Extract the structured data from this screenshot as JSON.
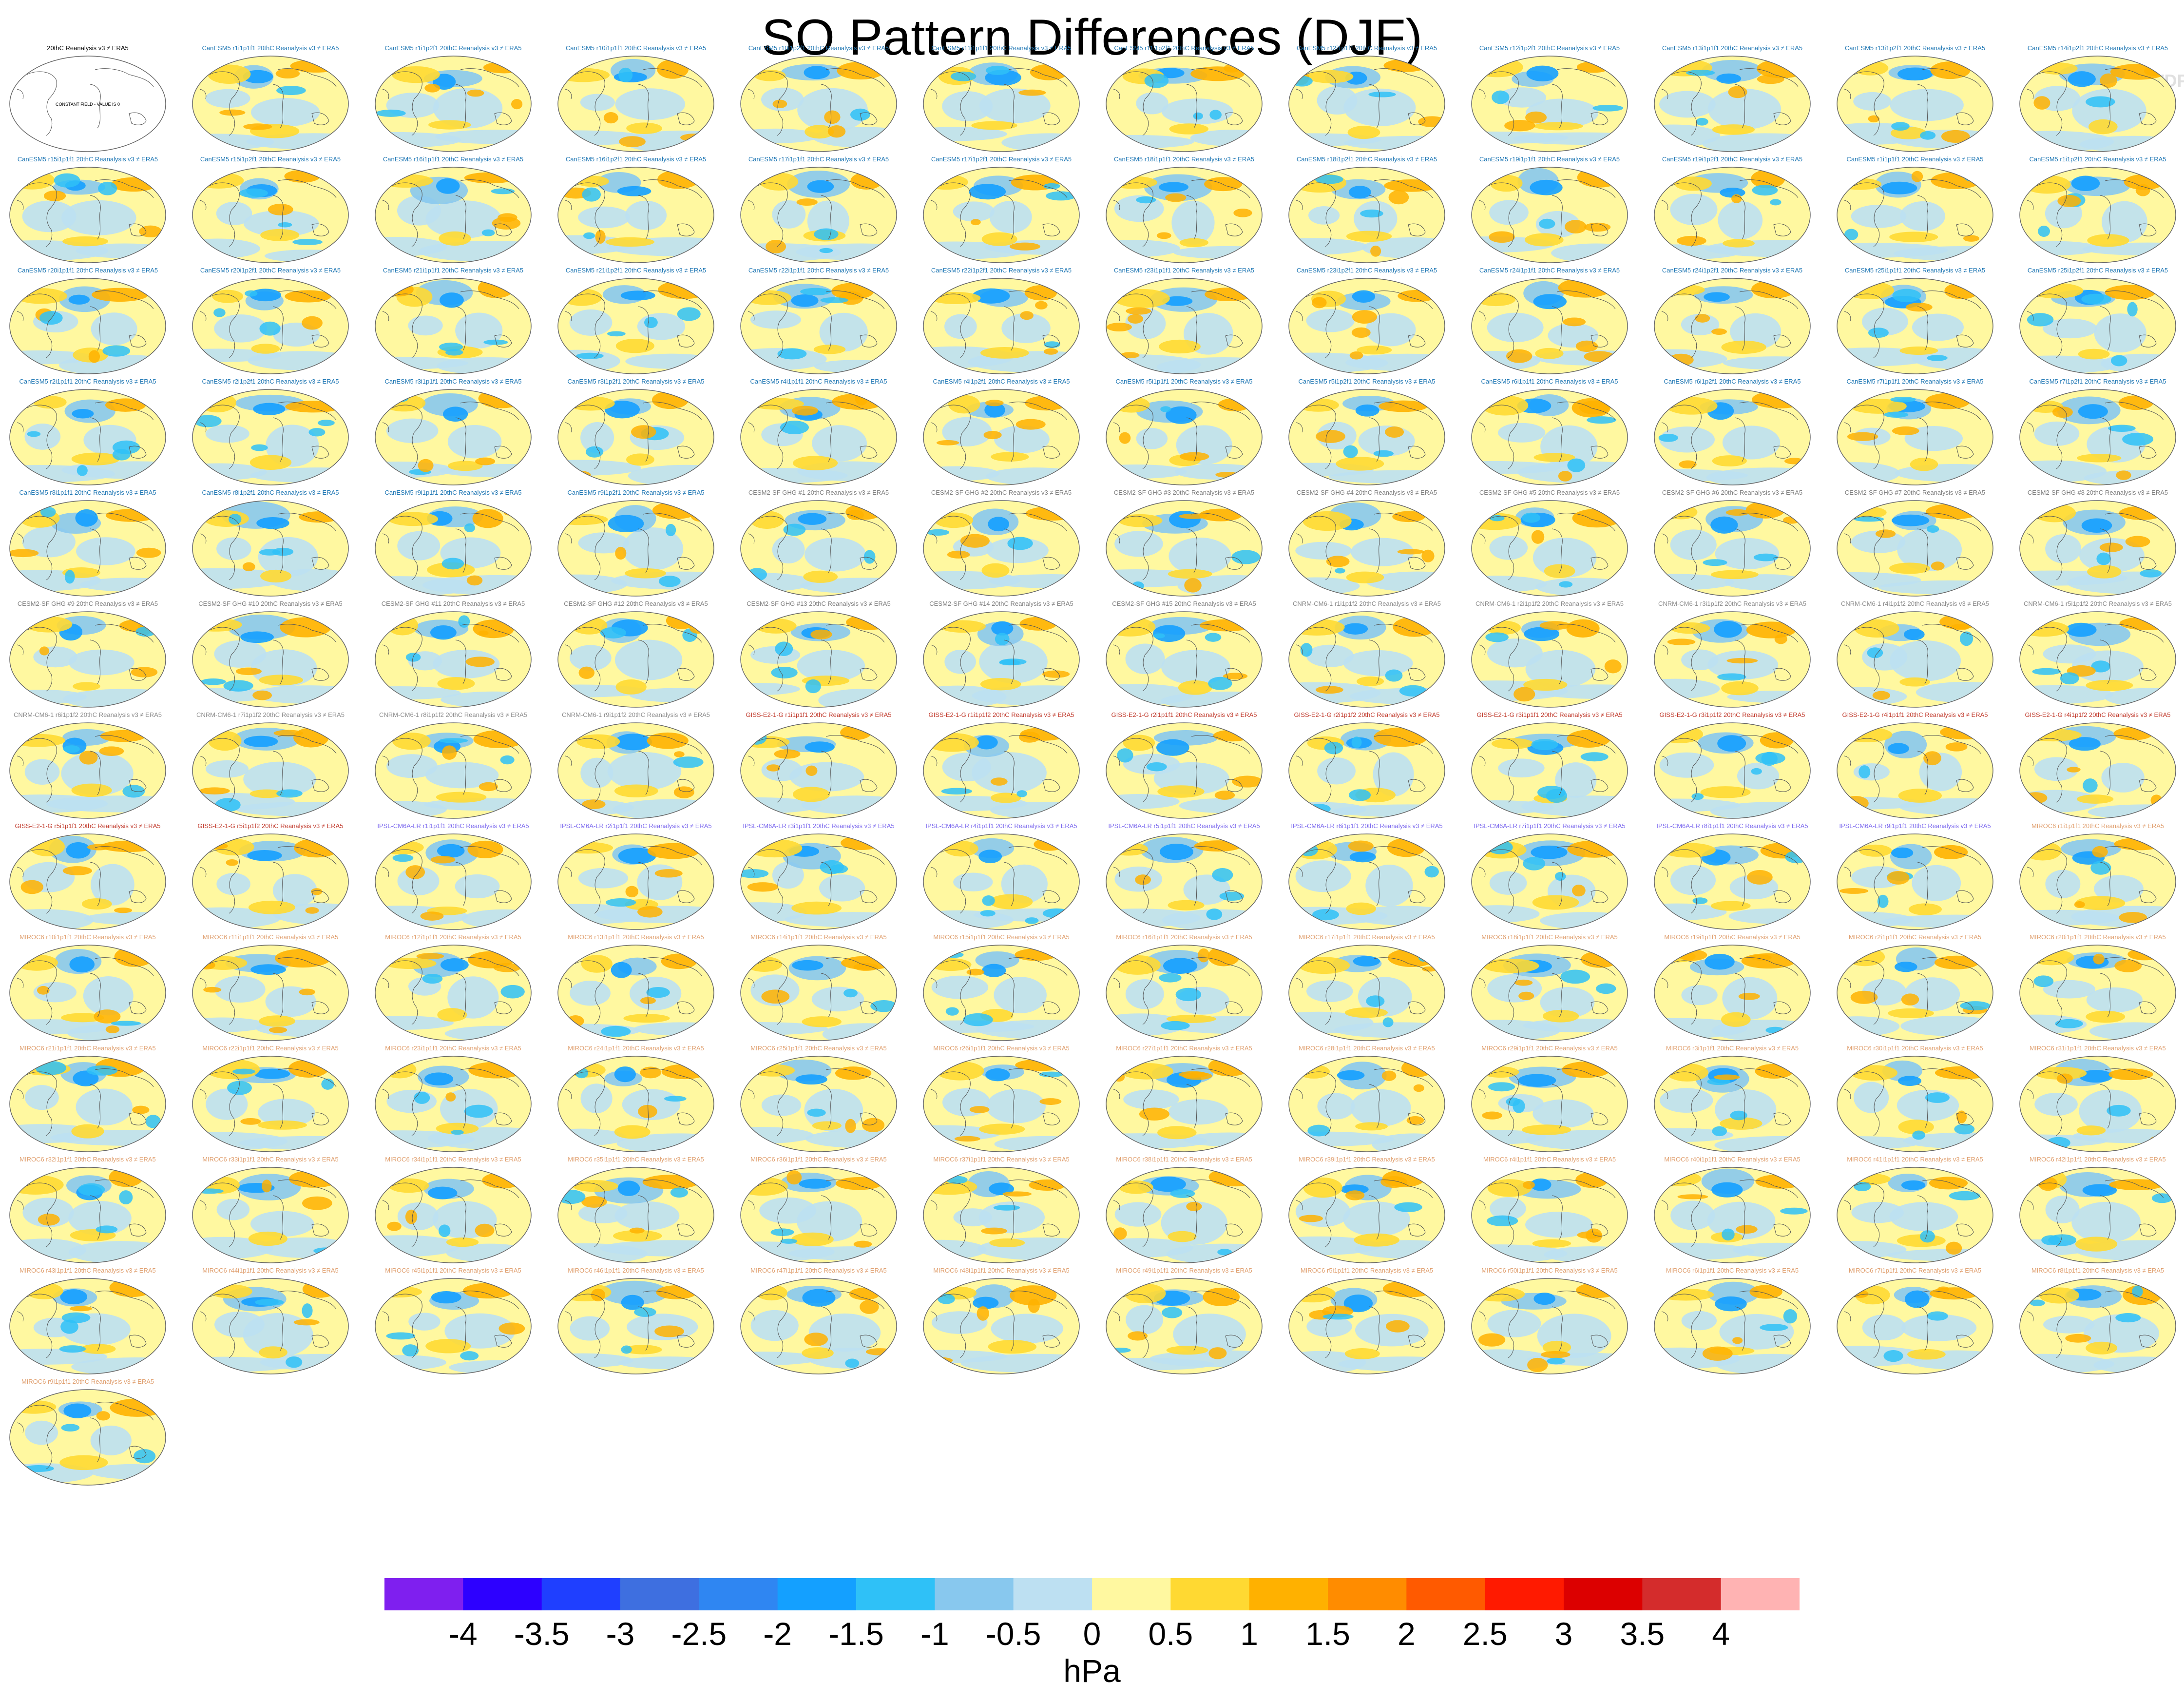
{
  "title": "SO Pattern Differences (DJF)",
  "watermark": "© CVDP-LE",
  "units": "hPa",
  "chart_data": {
    "type": "heatmap",
    "title": "SO Pattern Differences (DJF)",
    "projection": "Robinson global map panels",
    "panel_titles": [
      "20thC Reanalysis v3 ≠ ERA5",
      "CanESM5 r1i1p1f1 20thC Reanalysis v3 ≠ ERA5",
      "CanESM5 r1i1p2f1 20thC Reanalysis v3 ≠ ERA5",
      "CanESM5 r10i1p1f1 20thC Reanalysis v3 ≠ ERA5",
      "CanESM5 r10i1p2f1 20thC Reanalysis v3 ≠ ERA5",
      "CanESM5 r11i1p1f1 20thC Reanalysis v3 ≠ ERA5",
      "CanESM5 r11i1p2f1 20thC Reanalysis v3 ≠ ERA5",
      "CanESM5 r12i1p1f1 20thC Reanalysis v3 ≠ ERA5",
      "CanESM5 r12i1p2f1 20thC Reanalysis v3 ≠ ERA5",
      "CanESM5 r13i1p1f1 20thC Reanalysis v3 ≠ ERA5",
      "CanESM5 r13i1p2f1 20thC Reanalysis v3 ≠ ERA5",
      "CanESM5 r14i1p2f1 20thC Reanalysis v3 ≠ ERA5",
      "CanESM5 r15i1p1f1 20thC Reanalysis v3 ≠ ERA5",
      "CanESM5 r15i1p2f1 20thC Reanalysis v3 ≠ ERA5",
      "CanESM5 r16i1p1f1 20thC Reanalysis v3 ≠ ERA5",
      "CanESM5 r16i1p2f1 20thC Reanalysis v3 ≠ ERA5",
      "CanESM5 r17i1p1f1 20thC Reanalysis v3 ≠ ERA5",
      "CanESM5 r17i1p2f1 20thC Reanalysis v3 ≠ ERA5",
      "CanESM5 r18i1p1f1 20thC Reanalysis v3 ≠ ERA5",
      "CanESM5 r18i1p2f1 20thC Reanalysis v3 ≠ ERA5",
      "CanESM5 r19i1p1f1 20thC Reanalysis v3 ≠ ERA5",
      "CanESM5 r19i1p2f1 20thC Reanalysis v3 ≠ ERA5",
      "CanESM5 r1i1p1f1 20thC Reanalysis v3 ≠ ERA5",
      "CanESM5 r1i1p2f1 20thC Reanalysis v3 ≠ ERA5",
      "CanESM5 r20i1p1f1 20thC Reanalysis v3 ≠ ERA5",
      "CanESM5 r20i1p2f1 20thC Reanalysis v3 ≠ ERA5",
      "CanESM5 r21i1p1f1 20thC Reanalysis v3 ≠ ERA5",
      "CanESM5 r21i1p2f1 20thC Reanalysis v3 ≠ ERA5",
      "CanESM5 r22i1p1f1 20thC Reanalysis v3 ≠ ERA5",
      "CanESM5 r22i1p2f1 20thC Reanalysis v3 ≠ ERA5",
      "CanESM5 r23i1p1f1 20thC Reanalysis v3 ≠ ERA5",
      "CanESM5 r23i1p2f1 20thC Reanalysis v3 ≠ ERA5",
      "CanESM5 r24i1p1f1 20thC Reanalysis v3 ≠ ERA5",
      "CanESM5 r24i1p2f1 20thC Reanalysis v3 ≠ ERA5",
      "CanESM5 r25i1p1f1 20thC Reanalysis v3 ≠ ERA5",
      "CanESM5 r25i1p2f1 20thC Reanalysis v3 ≠ ERA5",
      "CanESM5 r2i1p1f1 20thC Reanalysis v3 ≠ ERA5",
      "CanESM5 r2i1p2f1 20thC Reanalysis v3 ≠ ERA5",
      "CanESM5 r3i1p1f1 20thC Reanalysis v3 ≠ ERA5",
      "CanESM5 r3i1p2f1 20thC Reanalysis v3 ≠ ERA5",
      "CanESM5 r4i1p1f1 20thC Reanalysis v3 ≠ ERA5",
      "CanESM5 r4i1p2f1 20thC Reanalysis v3 ≠ ERA5",
      "CanESM5 r5i1p1f1 20thC Reanalysis v3 ≠ ERA5",
      "CanESM5 r5i1p2f1 20thC Reanalysis v3 ≠ ERA5",
      "CanESM5 r6i1p1f1 20thC Reanalysis v3 ≠ ERA5",
      "CanESM5 r6i1p2f1 20thC Reanalysis v3 ≠ ERA5",
      "CanESM5 r7i1p1f1 20thC Reanalysis v3 ≠ ERA5",
      "CanESM5 r7i1p2f1 20thC Reanalysis v3 ≠ ERA5",
      "CanESM5 r8i1p1f1 20thC Reanalysis v3 ≠ ERA5",
      "CanESM5 r8i1p2f1 20thC Reanalysis v3 ≠ ERA5",
      "CanESM5 r9i1p1f1 20thC Reanalysis v3 ≠ ERA5",
      "CanESM5 r9i1p2f1 20thC Reanalysis v3 ≠ ERA5",
      "CESM2-SF GHG #1 20thC Reanalysis v3 ≠ ERA5",
      "CESM2-SF GHG #2 20thC Reanalysis v3 ≠ ERA5",
      "CESM2-SF GHG #3 20thC Reanalysis v3 ≠ ERA5",
      "CESM2-SF GHG #4 20thC Reanalysis v3 ≠ ERA5",
      "CESM2-SF GHG #5 20thC Reanalysis v3 ≠ ERA5",
      "CESM2-SF GHG #6 20thC Reanalysis v3 ≠ ERA5",
      "CESM2-SF GHG #7 20thC Reanalysis v3 ≠ ERA5",
      "CESM2-SF GHG #8 20thC Reanalysis v3 ≠ ERA5",
      "CESM2-SF GHG #9 20thC Reanalysis v3 ≠ ERA5",
      "CESM2-SF GHG #10 20thC Reanalysis v3 ≠ ERA5",
      "CESM2-SF GHG #11 20thC Reanalysis v3 ≠ ERA5",
      "CESM2-SF GHG #12 20thC Reanalysis v3 ≠ ERA5",
      "CESM2-SF GHG #13 20thC Reanalysis v3 ≠ ERA5",
      "CESM2-SF GHG #14 20thC Reanalysis v3 ≠ ERA5",
      "CESM2-SF GHG #15 20thC Reanalysis v3 ≠ ERA5",
      "CNRM-CM6-1 r1i1p1f2 20thC Reanalysis v3 ≠ ERA5",
      "CNRM-CM6-1 r2i1p1f2 20thC Reanalysis v3 ≠ ERA5",
      "CNRM-CM6-1 r3i1p1f2 20thC Reanalysis v3 ≠ ERA5",
      "CNRM-CM6-1 r4i1p1f2 20thC Reanalysis v3 ≠ ERA5",
      "CNRM-CM6-1 r5i1p1f2 20thC Reanalysis v3 ≠ ERA5",
      "CNRM-CM6-1 r6i1p1f2 20thC Reanalysis v3 ≠ ERA5",
      "CNRM-CM6-1 r7i1p1f2 20thC Reanalysis v3 ≠ ERA5",
      "CNRM-CM6-1 r8i1p1f2 20thC Reanalysis v3 ≠ ERA5",
      "CNRM-CM6-1 r9i1p1f2 20thC Reanalysis v3 ≠ ERA5",
      "GISS-E2-1-G r1i1p1f1 20thC Reanalysis v3 ≠ ERA5",
      "GISS-E2-1-G r1i1p1f2 20thC Reanalysis v3 ≠ ERA5",
      "GISS-E2-1-G r2i1p1f1 20thC Reanalysis v3 ≠ ERA5",
      "GISS-E2-1-G r2i1p1f2 20thC Reanalysis v3 ≠ ERA5",
      "GISS-E2-1-G r3i1p1f1 20thC Reanalysis v3 ≠ ERA5",
      "GISS-E2-1-G r3i1p1f2 20thC Reanalysis v3 ≠ ERA5",
      "GISS-E2-1-G r4i1p1f1 20thC Reanalysis v3 ≠ ERA5",
      "GISS-E2-1-G r4i1p1f2 20thC Reanalysis v3 ≠ ERA5",
      "GISS-E2-1-G r5i1p1f1 20thC Reanalysis v3 ≠ ERA5",
      "GISS-E2-1-G r5i1p1f2 20thC Reanalysis v3 ≠ ERA5",
      "IPSL-CM6A-LR r1i1p1f1 20thC Reanalysis v3 ≠ ERA5",
      "IPSL-CM6A-LR r2i1p1f1 20thC Reanalysis v3 ≠ ERA5",
      "IPSL-CM6A-LR r3i1p1f1 20thC Reanalysis v3 ≠ ERA5",
      "IPSL-CM6A-LR r4i1p1f1 20thC Reanalysis v3 ≠ ERA5",
      "IPSL-CM6A-LR r5i1p1f1 20thC Reanalysis v3 ≠ ERA5",
      "IPSL-CM6A-LR r6i1p1f1 20thC Reanalysis v3 ≠ ERA5",
      "IPSL-CM6A-LR r7i1p1f1 20thC Reanalysis v3 ≠ ERA5",
      "IPSL-CM6A-LR r8i1p1f1 20thC Reanalysis v3 ≠ ERA5",
      "IPSL-CM6A-LR r9i1p1f1 20thC Reanalysis v3 ≠ ERA5",
      "MIROC6 r1i1p1f1 20thC Reanalysis v3 ≠ ERA5",
      "MIROC6 r10i1p1f1 20thC Reanalysis v3 ≠ ERA5",
      "MIROC6 r11i1p1f1 20thC Reanalysis v3 ≠ ERA5",
      "MIROC6 r12i1p1f1 20thC Reanalysis v3 ≠ ERA5",
      "MIROC6 r13i1p1f1 20thC Reanalysis v3 ≠ ERA5",
      "MIROC6 r14i1p1f1 20thC Reanalysis v3 ≠ ERA5",
      "MIROC6 r15i1p1f1 20thC Reanalysis v3 ≠ ERA5",
      "MIROC6 r16i1p1f1 20thC Reanalysis v3 ≠ ERA5",
      "MIROC6 r17i1p1f1 20thC Reanalysis v3 ≠ ERA5",
      "MIROC6 r18i1p1f1 20thC Reanalysis v3 ≠ ERA5",
      "MIROC6 r19i1p1f1 20thC Reanalysis v3 ≠ ERA5",
      "MIROC6 r2i1p1f1 20thC Reanalysis v3 ≠ ERA5",
      "MIROC6 r20i1p1f1 20thC Reanalysis v3 ≠ ERA5",
      "MIROC6 r21i1p1f1 20thC Reanalysis v3 ≠ ERA5",
      "MIROC6 r22i1p1f1 20thC Reanalysis v3 ≠ ERA5",
      "MIROC6 r23i1p1f1 20thC Reanalysis v3 ≠ ERA5",
      "MIROC6 r24i1p1f1 20thC Reanalysis v3 ≠ ERA5",
      "MIROC6 r25i1p1f1 20thC Reanalysis v3 ≠ ERA5",
      "MIROC6 r26i1p1f1 20thC Reanalysis v3 ≠ ERA5",
      "MIROC6 r27i1p1f1 20thC Reanalysis v3 ≠ ERA5",
      "MIROC6 r28i1p1f1 20thC Reanalysis v3 ≠ ERA5",
      "MIROC6 r29i1p1f1 20thC Reanalysis v3 ≠ ERA5",
      "MIROC6 r3i1p1f1 20thC Reanalysis v3 ≠ ERA5",
      "MIROC6 r30i1p1f1 20thC Reanalysis v3 ≠ ERA5",
      "MIROC6 r31i1p1f1 20thC Reanalysis v3 ≠ ERA5",
      "MIROC6 r32i1p1f1 20thC Reanalysis v3 ≠ ERA5",
      "MIROC6 r33i1p1f1 20thC Reanalysis v3 ≠ ERA5",
      "MIROC6 r34i1p1f1 20thC Reanalysis v3 ≠ ERA5",
      "MIROC6 r35i1p1f1 20thC Reanalysis v3 ≠ ERA5",
      "MIROC6 r36i1p1f1 20thC Reanalysis v3 ≠ ERA5",
      "MIROC6 r37i1p1f1 20thC Reanalysis v3 ≠ ERA5",
      "MIROC6 r38i1p1f1 20thC Reanalysis v3 ≠ ERA5",
      "MIROC6 r39i1p1f1 20thC Reanalysis v3 ≠ ERA5",
      "MIROC6 r4i1p1f1 20thC Reanalysis v3 ≠ ERA5",
      "MIROC6 r40i1p1f1 20thC Reanalysis v3 ≠ ERA5",
      "MIROC6 r41i1p1f1 20thC Reanalysis v3 ≠ ERA5",
      "MIROC6 r42i1p1f1 20thC Reanalysis v3 ≠ ERA5",
      "MIROC6 r43i1p1f1 20thC Reanalysis v3 ≠ ERA5",
      "MIROC6 r44i1p1f1 20thC Reanalysis v3 ≠ ERA5",
      "MIROC6 r45i1p1f1 20thC Reanalysis v3 ≠ ERA5",
      "MIROC6 r46i1p1f1 20thC Reanalysis v3 ≠ ERA5",
      "MIROC6 r47i1p1f1 20thC Reanalysis v3 ≠ ERA5",
      "MIROC6 r48i1p1f1 20thC Reanalysis v3 ≠ ERA5",
      "MIROC6 r49i1p1f1 20thC Reanalysis v3 ≠ ERA5",
      "MIROC6 r5i1p1f1 20thC Reanalysis v3 ≠ ERA5",
      "MIROC6 r50i1p1f1 20thC Reanalysis v3 ≠ ERA5",
      "MIROC6 r6i1p1f1 20thC Reanalysis v3 ≠ ERA5",
      "MIROC6 r7i1p1f1 20thC Reanalysis v3 ≠ ERA5",
      "MIROC6 r8i1p1f1 20thC Reanalysis v3 ≠ ERA5",
      "MIROC6 r9i1p1f1 20thC Reanalysis v3 ≠ ERA5"
    ],
    "first_panel_note": "CONSTANT FIELD - VALUE IS 0",
    "title_colors": {
      "20thC": "#000000",
      "CanESM5": "#1f77b4",
      "CESM2-SF GHG": "#7f7f7f",
      "CNRM-CM6-1": "#8c8c8c",
      "GISS-E2-1-G": "#c0392b",
      "IPSL-CM6A-LR": "#7b68ee",
      "MIROC6": "#e0a070"
    },
    "colorbar": {
      "label": "hPa",
      "ticks": [
        "-4",
        "-3.5",
        "-3",
        "-2.5",
        "-2",
        "-1.5",
        "-1",
        "-0.5",
        "0",
        "0.5",
        "1",
        "1.5",
        "2",
        "2.5",
        "3",
        "3.5",
        "4"
      ],
      "colors": [
        "#7f1fef",
        "#2d00ff",
        "#1f3fff",
        "#3e6fe0",
        "#2f86f2",
        "#14a0ff",
        "#2fc1f7",
        "#88c8ee",
        "#bde0f2",
        "#fff8a0",
        "#ffd932",
        "#ffb100",
        "#ff8c00",
        "#ff5a00",
        "#ff1a00",
        "#dc0000",
        "#d42c2c",
        "#ffb3b3"
      ]
    }
  }
}
